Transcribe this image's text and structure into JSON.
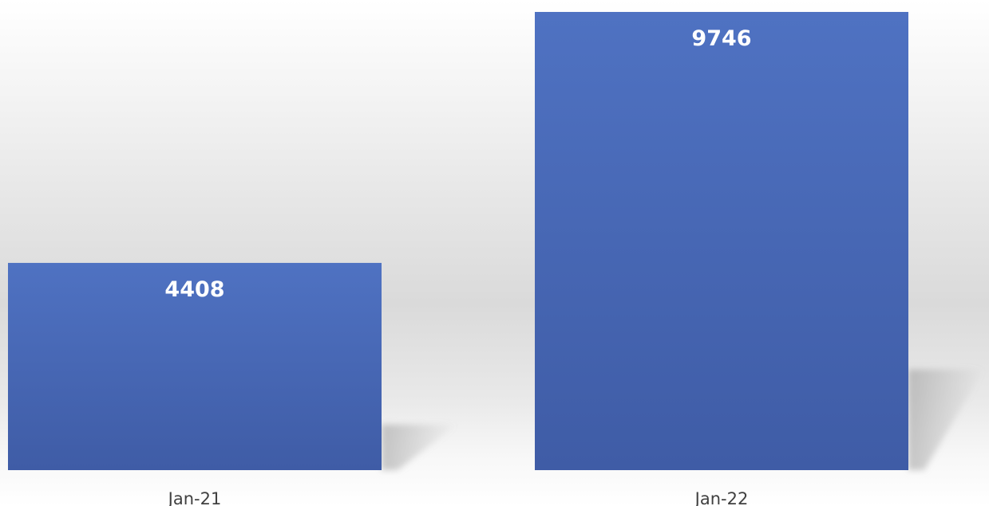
{
  "chart_data": {
    "type": "bar",
    "categories": [
      "Jan-21",
      "Jan-22"
    ],
    "values": [
      4408,
      9746
    ],
    "title": "",
    "xlabel": "",
    "ylabel": "",
    "ylim": [
      0,
      10000
    ],
    "grid": false,
    "legend": "none",
    "data_labels": [
      "4408",
      "9746"
    ],
    "colors": {
      "bar_top": "#4f72c2",
      "bar_bottom": "#3f5ca6",
      "data_label": "#ffffff",
      "category_label": "#404040",
      "shadow": "#9a9a9a"
    }
  }
}
